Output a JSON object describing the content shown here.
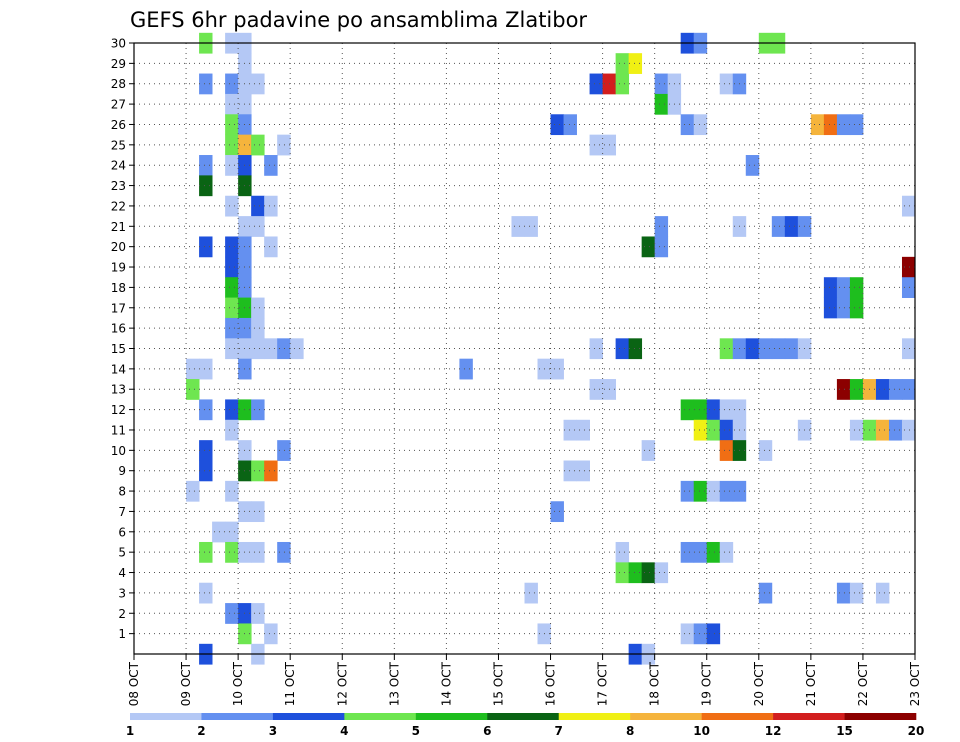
{
  "chart_data": {
    "type": "heatmap",
    "title": "GEFS 6hr padavine po ansamblima Zlatibor",
    "x_labels": [
      "08 OCT",
      "09 OCT",
      "10 OCT",
      "11 OCT",
      "12 OCT",
      "13 OCT",
      "14 OCT",
      "15 OCT",
      "16 OCT",
      "17 OCT",
      "18 OCT",
      "19 OCT",
      "20 OCT",
      "21 OCT",
      "22 OCT",
      "23 OCT"
    ],
    "y_labels": [
      "1",
      "2",
      "3",
      "4",
      "5",
      "6",
      "7",
      "8",
      "9",
      "10",
      "11",
      "12",
      "13",
      "14",
      "15",
      "16",
      "17",
      "18",
      "19",
      "20",
      "21",
      "22",
      "23",
      "24",
      "25",
      "26",
      "27",
      "28",
      "29",
      "30"
    ],
    "xlim": [
      0,
      60
    ],
    "ylim": [
      0,
      30
    ],
    "grid": true,
    "legend": {
      "position": "bottom",
      "labels": [
        "1",
        "2",
        "3",
        "4",
        "5",
        "6",
        "7",
        "8",
        "10",
        "12",
        "15",
        "20"
      ],
      "colors": [
        "#b4c8f5",
        "#6490f0",
        "#1e50dc",
        "#6ee650",
        "#1ebe1e",
        "#0a6414",
        "#f0f014",
        "#f5b43c",
        "#f06e14",
        "#d21e1e",
        "#8c0000"
      ]
    },
    "levels": [
      1,
      2,
      3,
      4,
      5,
      6,
      7,
      8,
      10,
      12,
      15,
      20
    ],
    "cells": [
      [
        30,
        5,
        "#6ee650"
      ],
      [
        30,
        7,
        "#b4c8f5"
      ],
      [
        30,
        8,
        "#b4c8f5"
      ],
      [
        30,
        42,
        "#1e50dc"
      ],
      [
        30,
        43,
        "#6490f0"
      ],
      [
        30,
        48,
        "#6ee650"
      ],
      [
        30,
        49,
        "#6ee650"
      ],
      [
        29,
        8,
        "#b4c8f5"
      ],
      [
        29,
        37,
        "#6ee650"
      ],
      [
        29,
        38,
        "#f0f014"
      ],
      [
        28,
        5,
        "#6490f0"
      ],
      [
        28,
        7,
        "#6490f0"
      ],
      [
        28,
        8,
        "#b4c8f5"
      ],
      [
        28,
        9,
        "#b4c8f5"
      ],
      [
        28,
        35,
        "#1e50dc"
      ],
      [
        28,
        36,
        "#d21e1e"
      ],
      [
        28,
        37,
        "#6ee650"
      ],
      [
        28,
        40,
        "#6490f0"
      ],
      [
        28,
        41,
        "#b4c8f5"
      ],
      [
        28,
        45,
        "#b4c8f5"
      ],
      [
        28,
        46,
        "#6490f0"
      ],
      [
        27,
        7,
        "#b4c8f5"
      ],
      [
        27,
        8,
        "#b4c8f5"
      ],
      [
        27,
        40,
        "#1ebe1e"
      ],
      [
        27,
        41,
        "#b4c8f5"
      ],
      [
        26,
        7,
        "#6ee650"
      ],
      [
        26,
        8,
        "#6490f0"
      ],
      [
        26,
        32,
        "#1e50dc"
      ],
      [
        26,
        33,
        "#6490f0"
      ],
      [
        26,
        42,
        "#6490f0"
      ],
      [
        26,
        43,
        "#b4c8f5"
      ],
      [
        26,
        52,
        "#f5b43c"
      ],
      [
        26,
        53,
        "#f06e14"
      ],
      [
        26,
        54,
        "#6490f0"
      ],
      [
        26,
        55,
        "#6490f0"
      ],
      [
        25,
        7,
        "#6ee650"
      ],
      [
        25,
        8,
        "#f5b43c"
      ],
      [
        25,
        9,
        "#6ee650"
      ],
      [
        25,
        11,
        "#b4c8f5"
      ],
      [
        25,
        35,
        "#b4c8f5"
      ],
      [
        25,
        36,
        "#b4c8f5"
      ],
      [
        24,
        5,
        "#6490f0"
      ],
      [
        24,
        7,
        "#b4c8f5"
      ],
      [
        24,
        8,
        "#1e50dc"
      ],
      [
        24,
        10,
        "#6490f0"
      ],
      [
        24,
        47,
        "#6490f0"
      ],
      [
        23,
        5,
        "#0a6414"
      ],
      [
        23,
        8,
        "#0a6414"
      ],
      [
        22,
        7,
        "#b4c8f5"
      ],
      [
        22,
        9,
        "#1e50dc"
      ],
      [
        22,
        10,
        "#b4c8f5"
      ],
      [
        22,
        59,
        "#b4c8f5"
      ],
      [
        21,
        8,
        "#b4c8f5"
      ],
      [
        21,
        9,
        "#b4c8f5"
      ],
      [
        21,
        29,
        "#b4c8f5"
      ],
      [
        21,
        30,
        "#b4c8f5"
      ],
      [
        21,
        40,
        "#6490f0"
      ],
      [
        21,
        46,
        "#b4c8f5"
      ],
      [
        21,
        49,
        "#6490f0"
      ],
      [
        21,
        50,
        "#1e50dc"
      ],
      [
        21,
        51,
        "#6490f0"
      ],
      [
        20,
        5,
        "#1e50dc"
      ],
      [
        20,
        7,
        "#1e50dc"
      ],
      [
        20,
        8,
        "#6490f0"
      ],
      [
        20,
        10,
        "#b4c8f5"
      ],
      [
        20,
        39,
        "#0a6414"
      ],
      [
        20,
        40,
        "#6490f0"
      ],
      [
        19,
        7,
        "#1e50dc"
      ],
      [
        19,
        8,
        "#6490f0"
      ],
      [
        19,
        59,
        "#8c0000"
      ],
      [
        18,
        7,
        "#1ebe1e"
      ],
      [
        18,
        8,
        "#6490f0"
      ],
      [
        18,
        53,
        "#1e50dc"
      ],
      [
        18,
        54,
        "#6490f0"
      ],
      [
        18,
        55,
        "#1ebe1e"
      ],
      [
        18,
        59,
        "#6490f0"
      ],
      [
        17,
        7,
        "#6ee650"
      ],
      [
        17,
        8,
        "#1ebe1e"
      ],
      [
        17,
        9,
        "#b4c8f5"
      ],
      [
        17,
        53,
        "#1e50dc"
      ],
      [
        17,
        54,
        "#6490f0"
      ],
      [
        17,
        55,
        "#1ebe1e"
      ],
      [
        16,
        7,
        "#6490f0"
      ],
      [
        16,
        8,
        "#6490f0"
      ],
      [
        16,
        9,
        "#b4c8f5"
      ],
      [
        15,
        7,
        "#b4c8f5"
      ],
      [
        15,
        8,
        "#b4c8f5"
      ],
      [
        15,
        9,
        "#b4c8f5"
      ],
      [
        15,
        10,
        "#b4c8f5"
      ],
      [
        15,
        11,
        "#6490f0"
      ],
      [
        15,
        12,
        "#b4c8f5"
      ],
      [
        15,
        35,
        "#b4c8f5"
      ],
      [
        15,
        37,
        "#1e50dc"
      ],
      [
        15,
        38,
        "#0a6414"
      ],
      [
        15,
        45,
        "#6ee650"
      ],
      [
        15,
        46,
        "#6490f0"
      ],
      [
        15,
        47,
        "#1e50dc"
      ],
      [
        15,
        48,
        "#6490f0"
      ],
      [
        15,
        49,
        "#6490f0"
      ],
      [
        15,
        50,
        "#6490f0"
      ],
      [
        15,
        51,
        "#b4c8f5"
      ],
      [
        15,
        59,
        "#b4c8f5"
      ],
      [
        14,
        4,
        "#b4c8f5"
      ],
      [
        14,
        5,
        "#b4c8f5"
      ],
      [
        14,
        8,
        "#6490f0"
      ],
      [
        14,
        25,
        "#6490f0"
      ],
      [
        14,
        31,
        "#b4c8f5"
      ],
      [
        14,
        32,
        "#b4c8f5"
      ],
      [
        13,
        4,
        "#6ee650"
      ],
      [
        13,
        35,
        "#b4c8f5"
      ],
      [
        13,
        36,
        "#b4c8f5"
      ],
      [
        13,
        54,
        "#8c0000"
      ],
      [
        13,
        55,
        "#1ebe1e"
      ],
      [
        13,
        56,
        "#f5b43c"
      ],
      [
        13,
        57,
        "#1e50dc"
      ],
      [
        13,
        58,
        "#6490f0"
      ],
      [
        13,
        59,
        "#6490f0"
      ],
      [
        12,
        5,
        "#6490f0"
      ],
      [
        12,
        7,
        "#1e50dc"
      ],
      [
        12,
        8,
        "#1ebe1e"
      ],
      [
        12,
        9,
        "#6490f0"
      ],
      [
        12,
        42,
        "#1ebe1e"
      ],
      [
        12,
        43,
        "#1ebe1e"
      ],
      [
        12,
        44,
        "#1e50dc"
      ],
      [
        12,
        45,
        "#b4c8f5"
      ],
      [
        12,
        46,
        "#b4c8f5"
      ],
      [
        11,
        7,
        "#b4c8f5"
      ],
      [
        11,
        33,
        "#b4c8f5"
      ],
      [
        11,
        34,
        "#b4c8f5"
      ],
      [
        11,
        43,
        "#f0f014"
      ],
      [
        11,
        44,
        "#6ee650"
      ],
      [
        11,
        45,
        "#1e50dc"
      ],
      [
        11,
        46,
        "#b4c8f5"
      ],
      [
        11,
        51,
        "#b4c8f5"
      ],
      [
        11,
        55,
        "#b4c8f5"
      ],
      [
        11,
        56,
        "#6ee650"
      ],
      [
        11,
        57,
        "#f5b43c"
      ],
      [
        11,
        58,
        "#6490f0"
      ],
      [
        11,
        59,
        "#b4c8f5"
      ],
      [
        10,
        5,
        "#1e50dc"
      ],
      [
        10,
        8,
        "#b4c8f5"
      ],
      [
        10,
        11,
        "#6490f0"
      ],
      [
        10,
        39,
        "#b4c8f5"
      ],
      [
        10,
        45,
        "#f06e14"
      ],
      [
        10,
        46,
        "#0a6414"
      ],
      [
        10,
        48,
        "#b4c8f5"
      ],
      [
        9,
        5,
        "#1e50dc"
      ],
      [
        9,
        8,
        "#0a6414"
      ],
      [
        9,
        9,
        "#6ee650"
      ],
      [
        9,
        10,
        "#f06e14"
      ],
      [
        9,
        33,
        "#b4c8f5"
      ],
      [
        9,
        34,
        "#b4c8f5"
      ],
      [
        8,
        4,
        "#b4c8f5"
      ],
      [
        8,
        7,
        "#b4c8f5"
      ],
      [
        8,
        42,
        "#6490f0"
      ],
      [
        8,
        43,
        "#1ebe1e"
      ],
      [
        8,
        44,
        "#b4c8f5"
      ],
      [
        8,
        45,
        "#6490f0"
      ],
      [
        8,
        46,
        "#6490f0"
      ],
      [
        7,
        8,
        "#b4c8f5"
      ],
      [
        7,
        9,
        "#b4c8f5"
      ],
      [
        7,
        32,
        "#6490f0"
      ],
      [
        6,
        6,
        "#b4c8f5"
      ],
      [
        6,
        7,
        "#b4c8f5"
      ],
      [
        5,
        5,
        "#6ee650"
      ],
      [
        5,
        7,
        "#6ee650"
      ],
      [
        5,
        8,
        "#b4c8f5"
      ],
      [
        5,
        9,
        "#b4c8f5"
      ],
      [
        5,
        11,
        "#6490f0"
      ],
      [
        5,
        37,
        "#b4c8f5"
      ],
      [
        5,
        42,
        "#6490f0"
      ],
      [
        5,
        43,
        "#6490f0"
      ],
      [
        5,
        44,
        "#1ebe1e"
      ],
      [
        5,
        45,
        "#b4c8f5"
      ],
      [
        4,
        37,
        "#6ee650"
      ],
      [
        4,
        38,
        "#1ebe1e"
      ],
      [
        4,
        39,
        "#0a6414"
      ],
      [
        4,
        40,
        "#b4c8f5"
      ],
      [
        3,
        5,
        "#b4c8f5"
      ],
      [
        3,
        30,
        "#b4c8f5"
      ],
      [
        3,
        48,
        "#6490f0"
      ],
      [
        3,
        54,
        "#6490f0"
      ],
      [
        3,
        55,
        "#b4c8f5"
      ],
      [
        3,
        57,
        "#b4c8f5"
      ],
      [
        2,
        7,
        "#6490f0"
      ],
      [
        2,
        8,
        "#1e50dc"
      ],
      [
        2,
        9,
        "#b4c8f5"
      ],
      [
        1,
        8,
        "#6ee650"
      ],
      [
        1,
        10,
        "#b4c8f5"
      ],
      [
        1,
        31,
        "#b4c8f5"
      ],
      [
        1,
        42,
        "#b4c8f5"
      ],
      [
        1,
        43,
        "#6490f0"
      ],
      [
        1,
        44,
        "#1e50dc"
      ],
      [
        0,
        5,
        "#1e50dc"
      ],
      [
        0,
        9,
        "#b4c8f5"
      ],
      [
        0,
        38,
        "#1e50dc"
      ],
      [
        0,
        39,
        "#b4c8f5"
      ]
    ]
  }
}
